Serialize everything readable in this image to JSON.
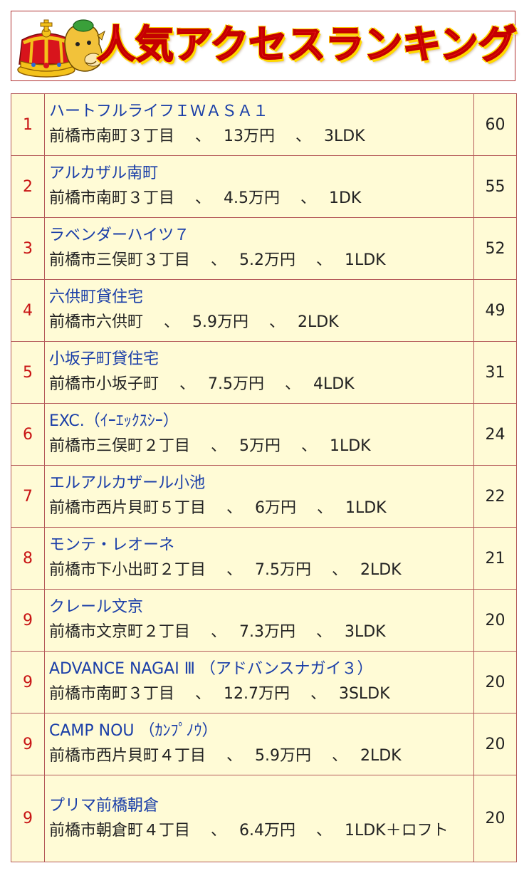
{
  "header": {
    "title": "人気アクセスランキング",
    "mascot_icon": "crowned-mascot-icon"
  },
  "colors": {
    "title_red": "#e8101a",
    "title_outline": "#ffd800",
    "rank_red": "#c81414",
    "name_blue": "#1a3ea8",
    "table_bg": "#fffbd6",
    "border": "#b55a5a"
  },
  "ranking": [
    {
      "rank": "1",
      "name": "ハートフルライフＩＷＡＳＡ１",
      "detail": "前橋市南町３丁目　 、　 13万円　 、　 3LDK",
      "count": "60"
    },
    {
      "rank": "2",
      "name": "アルカザル南町",
      "detail": "前橋市南町３丁目　 、　 4.5万円　 、　 1DK",
      "count": "55"
    },
    {
      "rank": "3",
      "name": "ラベンダーハイツ７",
      "detail": "前橋市三俣町３丁目　 、　 5.2万円　 、　 1LDK",
      "count": "52"
    },
    {
      "rank": "4",
      "name": "六供町貸住宅",
      "detail": "前橋市六供町　 、　 5.9万円　 、　 2LDK",
      "count": "49"
    },
    {
      "rank": "5",
      "name": "小坂子町貸住宅",
      "detail": "前橋市小坂子町　 、　 7.5万円　 、　 4LDK",
      "count": "31"
    },
    {
      "rank": "6",
      "name": "EXC.（ｲｰｴｯｸｽｼｰ）",
      "detail": "前橋市三俣町２丁目　 、　 5万円　 、　 1LDK",
      "count": "24"
    },
    {
      "rank": "7",
      "name": "エルアルカザール小池",
      "detail": "前橋市西片貝町５丁目　 、　 6万円　 、　 1LDK",
      "count": "22"
    },
    {
      "rank": "8",
      "name": "モンテ・レオーネ",
      "detail": "前橋市下小出町２丁目　 、　 7.5万円　 、　 2LDK",
      "count": "21"
    },
    {
      "rank": "9",
      "name": "クレール文京",
      "detail": "前橋市文京町２丁目　 、　 7.3万円　 、　 3LDK",
      "count": "20"
    },
    {
      "rank": "9",
      "name": "ADVANCE NAGAI Ⅲ （アドバンスナガイ３）",
      "detail": "前橋市南町３丁目　 、　 12.7万円　 、　 3SLDK",
      "count": "20"
    },
    {
      "rank": "9",
      "name": "CAMP NOU （ｶﾝﾌﾟﾉｳ）",
      "detail": "前橋市西片貝町４丁目　 、　 5.9万円　 、　 2LDK",
      "count": "20"
    },
    {
      "rank": "9",
      "name": "プリマ前橋朝倉",
      "detail": "前橋市朝倉町４丁目　 、　 6.4万円　 、　 1LDK＋ロフト",
      "count": "20"
    }
  ]
}
